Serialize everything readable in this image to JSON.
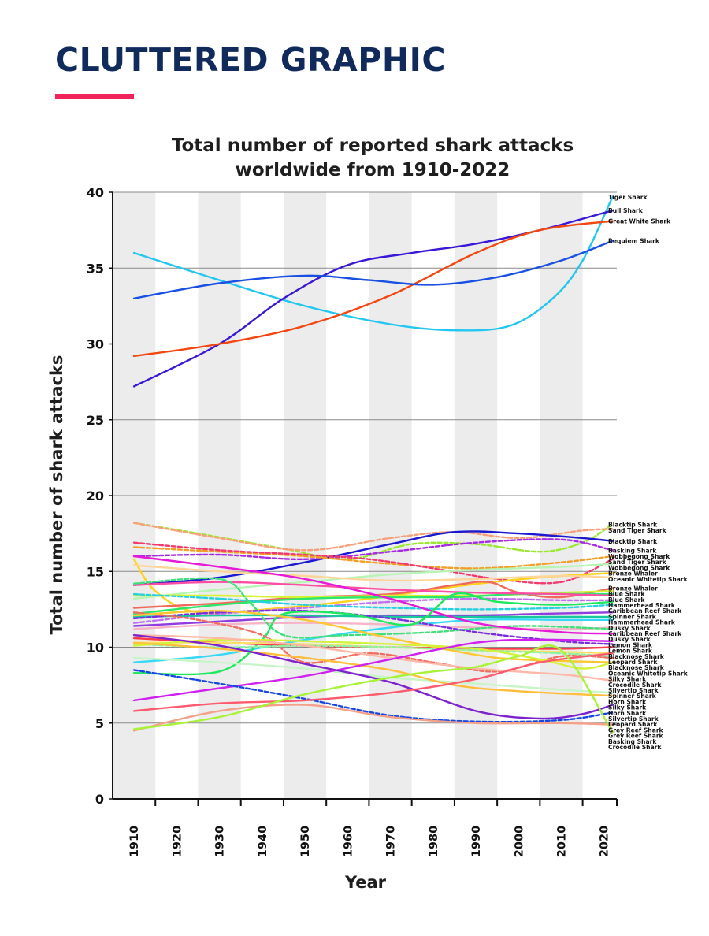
{
  "header": {
    "title": "CLUTTERED GRAPHIC",
    "accent_color": "#f0245a",
    "title_color": "#102a5c"
  },
  "chart_data": {
    "type": "line",
    "title_lines": [
      "Total number of reported shark attacks",
      "worldwide from 1910-2022"
    ],
    "xlabel": "Year",
    "ylabel": "Total number of shark attacks",
    "x_ticks": [
      1910,
      1920,
      1930,
      1940,
      1950,
      1960,
      1970,
      1980,
      1990,
      2000,
      2010,
      2020
    ],
    "y_ticks": [
      0,
      5,
      10,
      15,
      20,
      25,
      30,
      35,
      40
    ],
    "xlim": [
      1905,
      2023
    ],
    "ylim": [
      0,
      40
    ],
    "grid": "horizontal gridlines with alternating grey decade bands",
    "legend": "series labels at right end of lines",
    "series": [
      {
        "name": "Tiger Shark",
        "color": "#22c6f0",
        "dash": false,
        "x": [
          1910,
          1930,
          1950,
          1970,
          1985,
          1998,
          2008,
          2015,
          2022
        ],
        "y": [
          36,
          34.2,
          32.5,
          31.3,
          30.9,
          31.2,
          33,
          35.5,
          39.7
        ]
      },
      {
        "name": "Bull Shark",
        "color": "#3a17d6",
        "dash": false,
        "x": [
          1910,
          1930,
          1945,
          1960,
          1975,
          1990,
          2005,
          2022
        ],
        "y": [
          27.2,
          30,
          33,
          35.2,
          36,
          36.6,
          37.5,
          38.8
        ]
      },
      {
        "name": "Great White Shark",
        "color": "#f34712",
        "dash": false,
        "x": [
          1910,
          1930,
          1950,
          1970,
          1990,
          2005,
          2022
        ],
        "y": [
          29.2,
          30,
          31.2,
          33.2,
          36,
          37.5,
          38.1
        ]
      },
      {
        "name": "Requiem Shark",
        "color": "#1a4fe3",
        "dash": false,
        "x": [
          1910,
          1930,
          1950,
          1965,
          1980,
          1995,
          2010,
          2022
        ],
        "y": [
          33,
          34,
          34.5,
          34.2,
          33.9,
          34.4,
          35.5,
          36.8
        ]
      },
      {
        "name": "Blacktip Shark",
        "color": "#9be832",
        "dash": true,
        "x": [
          1910,
          1925,
          1945,
          1960,
          1975,
          1990,
          2005,
          2015,
          2022
        ],
        "y": [
          18.2,
          17.5,
          16.5,
          15.8,
          16.8,
          16.8,
          16.3,
          16.9,
          18.1
        ]
      },
      {
        "name": "Sand Tiger Shark",
        "color": "#f9a07a",
        "dash": true,
        "x": [
          1910,
          1930,
          1950,
          1970,
          1985,
          2000,
          2015,
          2022
        ],
        "y": [
          18.2,
          17.2,
          16.4,
          17.2,
          17.6,
          17.2,
          17.7,
          17.8
        ]
      },
      {
        "name": "Blacktip Shark",
        "color": "#1a18d0",
        "dash": false,
        "x": [
          1910,
          1930,
          1950,
          1970,
          1985,
          2000,
          2015,
          2022
        ],
        "y": [
          14.1,
          14.6,
          15.6,
          16.8,
          17.6,
          17.5,
          17.2,
          17
        ]
      },
      {
        "name": "Basking Shark",
        "color": "#a62ae6",
        "dash": true,
        "x": [
          1910,
          1930,
          1950,
          1970,
          1990,
          2010,
          2022
        ],
        "y": [
          16,
          16.1,
          15.8,
          16.3,
          16.9,
          17.1,
          16.4
        ]
      },
      {
        "name": "Wobbegong Shark",
        "color": "#f59e26",
        "dash": true,
        "x": [
          1910,
          1930,
          1950,
          1970,
          1990,
          2010,
          2022
        ],
        "y": [
          16.6,
          16.3,
          16,
          15.5,
          15.2,
          15.6,
          16
        ]
      },
      {
        "name": "Sand Tiger Shark",
        "color": "#f43a6d",
        "dash": true,
        "x": [
          1910,
          1930,
          1950,
          1965,
          1980,
          1995,
          2010,
          2022
        ],
        "y": [
          16.9,
          16.4,
          16.1,
          15.8,
          15.2,
          14.5,
          14.3,
          15.8
        ]
      },
      {
        "name": "Wobbegong Shark",
        "color": "#b8f5b4",
        "dash": false,
        "x": [
          1910,
          1930,
          1950,
          1970,
          1990,
          2010,
          2022
        ],
        "y": [
          13.2,
          13.8,
          14.3,
          14.8,
          15.1,
          15.3,
          15.5
        ]
      },
      {
        "name": "Bronze Whaler",
        "color": "#ffd21c",
        "dash": false,
        "x": [
          1910,
          1915,
          1925,
          1945,
          1965,
          1985,
          2005,
          2022
        ],
        "y": [
          15.8,
          13.7,
          12.3,
          12.6,
          13.2,
          14,
          14.6,
          14.9
        ]
      },
      {
        "name": "Oceanic Whitetip Shark",
        "color": "#ffd59a",
        "dash": false,
        "x": [
          1910,
          1930,
          1950,
          1970,
          1990,
          2010,
          2022
        ],
        "y": [
          15.4,
          15,
          14.7,
          14.4,
          14.5,
          14.7,
          14.6
        ]
      },
      {
        "name": "Bronze Whaler",
        "color": "#f06a5c",
        "dash": false,
        "x": [
          1910,
          1930,
          1950,
          1970,
          1985,
          1993,
          2000,
          2010,
          2022
        ],
        "y": [
          12.6,
          12.9,
          13.3,
          13.5,
          14.1,
          14.3,
          13.6,
          13.3,
          13.9
        ]
      },
      {
        "name": "Blue Shark",
        "color": "#d8f230",
        "dash": false,
        "x": [
          1910,
          1930,
          1950,
          1970,
          1990,
          2010,
          2022
        ],
        "y": [
          13.4,
          13.4,
          13.3,
          13.4,
          13.4,
          13.6,
          13.7
        ]
      },
      {
        "name": "Blue Shark",
        "color": "#2be86d",
        "dash": false,
        "x": [
          1910,
          1930,
          1950,
          1970,
          1985,
          2000,
          2022
        ],
        "y": [
          12.2,
          12.8,
          13.2,
          13.3,
          13.3,
          13.5,
          13.5
        ]
      },
      {
        "name": "Hammerhead Shark",
        "color": "#ff4da6",
        "dash": false,
        "x": [
          1910,
          1930,
          1950,
          1970,
          1990,
          2010,
          2022
        ],
        "y": [
          14.1,
          14.3,
          14.1,
          13.8,
          13.6,
          13.5,
          13.4
        ]
      },
      {
        "name": "Caribbean Reef Shark",
        "color": "#c06ff5",
        "dash": true,
        "x": [
          1910,
          1930,
          1950,
          1970,
          1990,
          2010,
          2022
        ],
        "y": [
          11.6,
          12.2,
          12.6,
          13,
          13.2,
          13.1,
          13.1
        ]
      },
      {
        "name": "Hammerhead Shark",
        "color": "#25d0e0",
        "dash": true,
        "x": [
          1910,
          1930,
          1950,
          1970,
          1990,
          2010,
          2022
        ],
        "y": [
          13.5,
          13.2,
          12.8,
          12.6,
          12.5,
          12.6,
          12.8
        ]
      },
      {
        "name": "Dusky Shark",
        "color": "#8f3de0",
        "dash": false,
        "x": [
          1910,
          1930,
          1950,
          1970,
          1990,
          2005,
          2022
        ],
        "y": [
          11.4,
          11.7,
          12,
          12.1,
          12.1,
          12.2,
          12.3
        ]
      },
      {
        "name": "Caribbean Reef Shark",
        "color": "#16c89a",
        "dash": false,
        "x": [
          1910,
          1930,
          1950,
          1970,
          1990,
          2010,
          2022
        ],
        "y": [
          12,
          12.1,
          12.1,
          12,
          12,
          12,
          12
        ]
      },
      {
        "name": "Dusky Shark",
        "color": "#35d9f5",
        "dash": false,
        "x": [
          1910,
          1930,
          1950,
          1970,
          1990,
          2010,
          2022
        ],
        "y": [
          9,
          9.5,
          10.5,
          11.3,
          11.8,
          11.8,
          11.8
        ]
      },
      {
        "name": "Lemon Shark",
        "color": "#f7b4c8",
        "dash": false,
        "x": [
          1910,
          1930,
          1950,
          1970,
          1990,
          2010,
          2022
        ],
        "y": [
          11.2,
          11.5,
          11.6,
          11.5,
          11.3,
          11.2,
          11.3
        ]
      },
      {
        "name": "Lemon Shark",
        "color": "#3fe07a",
        "dash": true,
        "x": [
          1910,
          1930,
          1937,
          1945,
          1960,
          1980,
          2000,
          2022
        ],
        "y": [
          14.2,
          14.5,
          13,
          10.8,
          10.8,
          11,
          11.4,
          11.2
        ]
      },
      {
        "name": "Blacknose Shark",
        "color": "#e619d8",
        "dash": false,
        "x": [
          1910,
          1930,
          1950,
          1970,
          1990,
          2010,
          2022
        ],
        "y": [
          16,
          15.3,
          14.5,
          13.2,
          11.6,
          11,
          10.9
        ]
      },
      {
        "name": "Blacknose Shark",
        "color": "#7a2ee0",
        "dash": true,
        "x": [
          1910,
          1930,
          1950,
          1970,
          1990,
          2010,
          2022
        ],
        "y": [
          11.9,
          12.3,
          12.4,
          11.9,
          11,
          10.4,
          10.2
        ]
      },
      {
        "name": "Spinner Shark",
        "color": "#1ee85c",
        "dash": false,
        "x": [
          1910,
          1930,
          1940,
          1945,
          1960,
          1975,
          1985,
          1995,
          2010,
          2022
        ],
        "y": [
          8.3,
          8.4,
          10.5,
          12.2,
          12.2,
          11.5,
          13.5,
          13,
          12.8,
          13
        ]
      },
      {
        "name": "Oceanic Whitetip Shark",
        "color": "#ff3b4a",
        "dash": false,
        "x": [
          1910,
          1930,
          1950,
          1970,
          1990,
          2010,
          2022
        ],
        "y": [
          10.6,
          10.3,
          10.1,
          10,
          9.9,
          9.9,
          10
        ]
      },
      {
        "name": "Silky Shark",
        "color": "#ffe066",
        "dash": false,
        "x": [
          1910,
          1930,
          1950,
          1970,
          1990,
          2010,
          2022
        ],
        "y": [
          10.3,
          10.3,
          10.2,
          10,
          9.8,
          9.7,
          9.6
        ]
      },
      {
        "name": "Spinner Shark",
        "color": "#f46b5f",
        "dash": true,
        "x": [
          1910,
          1925,
          1940,
          1950,
          1965,
          1980,
          1995,
          2010,
          2022
        ],
        "y": [
          12.3,
          11.8,
          10.8,
          9,
          9.6,
          9,
          8.4,
          9.4,
          9.3
        ]
      },
      {
        "name": "Silvertip Shark",
        "color": "#8ef2a4",
        "dash": true,
        "x": [
          1910,
          1930,
          1950,
          1970,
          1990,
          2010,
          2022
        ],
        "y": [
          10.2,
          10,
          10.1,
          10,
          9.8,
          9.6,
          9.4
        ]
      },
      {
        "name": "Horn Shark",
        "color": "#ffc832",
        "dash": false,
        "x": [
          1910,
          1930,
          1950,
          1970,
          1990,
          2000,
          2022
        ],
        "y": [
          12.1,
          12.4,
          11.8,
          10.6,
          9.5,
          9.2,
          9
        ]
      },
      {
        "name": "Silky Shark",
        "color": "#d4f23a",
        "dash": false,
        "x": [
          1910,
          1930,
          1950,
          1970,
          1990,
          2005,
          2015,
          2022
        ],
        "y": [
          10.1,
          10.5,
          10.4,
          10.2,
          9.9,
          9.2,
          8.6,
          9
        ]
      },
      {
        "name": "Horn Shark",
        "color": "#ffb8a6",
        "dash": false,
        "x": [
          1910,
          1930,
          1950,
          1970,
          1990,
          2010,
          2022
        ],
        "y": [
          10.8,
          10.6,
          10.1,
          9.3,
          8.6,
          8.2,
          7.8
        ]
      },
      {
        "name": "Silvertip Shark",
        "color": "#c8f5c8",
        "dash": false,
        "x": [
          1910,
          1930,
          1950,
          1970,
          1990,
          2010,
          2022
        ],
        "y": [
          9.3,
          9,
          8.6,
          8,
          7.6,
          7.2,
          7
        ]
      },
      {
        "name": "Leopard Shark",
        "color": "#ffbe3c",
        "dash": false,
        "x": [
          1910,
          1930,
          1950,
          1970,
          1985,
          2000,
          2022
        ],
        "y": [
          10.3,
          9.9,
          9.3,
          8.5,
          7.5,
          7.1,
          6.8
        ]
      },
      {
        "name": "Leopard Shark",
        "color": "#d020f0",
        "dash": false,
        "x": [
          1910,
          1930,
          1950,
          1970,
          1990,
          2005,
          2022
        ],
        "y": [
          6.5,
          7.3,
          8.1,
          9.2,
          10.3,
          10.5,
          10.4
        ]
      },
      {
        "name": "Grey Reef Shark",
        "color": "#7e22ce",
        "dash": false,
        "x": [
          1910,
          1930,
          1950,
          1970,
          1990,
          2005,
          2015,
          2022
        ],
        "y": [
          10.8,
          10.1,
          8.9,
          7.7,
          5.8,
          5.3,
          5.6,
          6.2
        ]
      },
      {
        "name": "Grey Reef Shark",
        "color": "#1545e6",
        "dash": true,
        "x": [
          1910,
          1930,
          1950,
          1970,
          1990,
          2010,
          2022
        ],
        "y": [
          8.5,
          7.6,
          6.6,
          5.5,
          5.1,
          5.2,
          5.7
        ]
      },
      {
        "name": "Crocodile Shark",
        "color": "#ff5a6e",
        "dash": false,
        "x": [
          1910,
          1930,
          1950,
          1970,
          1990,
          2005,
          2022
        ],
        "y": [
          5.8,
          6.3,
          6.5,
          7,
          7.9,
          9,
          9.6
        ]
      },
      {
        "name": "Basking Shark",
        "color": "#f5a088",
        "dash": false,
        "x": [
          1910,
          1930,
          1950,
          1970,
          1990,
          2010,
          2022
        ],
        "y": [
          4.5,
          5.8,
          6.2,
          5.4,
          5,
          5,
          4.9
        ]
      },
      {
        "name": "Crocodile Shark",
        "color": "#a8f238",
        "dash": false,
        "x": [
          1910,
          1930,
          1950,
          1970,
          1980,
          1990,
          2000,
          2010,
          2022
        ],
        "y": [
          4.6,
          5.4,
          6.9,
          8,
          8.4,
          8.7,
          9.4,
          9.8,
          4.4
        ]
      }
    ]
  }
}
